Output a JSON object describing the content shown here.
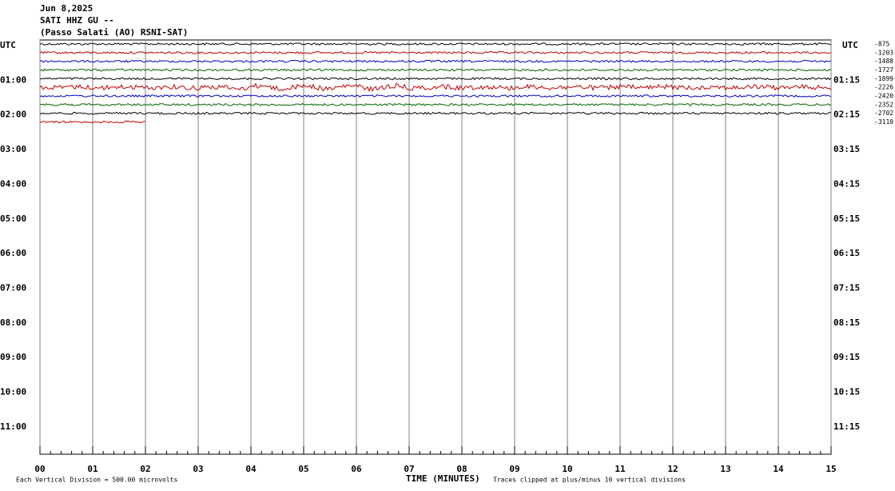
{
  "chart_data": {
    "type": "helicorder",
    "title": "Jun 8,2025",
    "subtitle": "SATI HHZ GU --",
    "station": "(Passo Salati (AO) RSNI-SAT)",
    "left_axis_title": "UTC",
    "right_axis_title": "UTC",
    "left_labels": [
      "01:00",
      "02:00",
      "03:00",
      "04:00",
      "05:00",
      "06:00",
      "07:00",
      "08:00",
      "09:00",
      "10:00",
      "11:00"
    ],
    "right_labels": [
      "01:15",
      "02:15",
      "03:15",
      "04:15",
      "05:15",
      "06:15",
      "07:15",
      "08:15",
      "09:15",
      "10:15",
      "11:15"
    ],
    "trace_offsets": [
      -875,
      -1203,
      -1488,
      -1727,
      -1899,
      -2226,
      -2420,
      -2352,
      -2702,
      -3110
    ],
    "trace_colors": [
      "#000000",
      "#c00000",
      "#0000c8",
      "#006400"
    ],
    "xlabel": "TIME (MINUTES)",
    "xlim": [
      0,
      15
    ],
    "xticks": [
      {
        "value": 0,
        "label": "00"
      },
      {
        "value": 1,
        "label": "01"
      },
      {
        "value": 2,
        "label": "02"
      },
      {
        "value": 3,
        "label": "03"
      },
      {
        "value": 4,
        "label": "04"
      },
      {
        "value": 5,
        "label": "05"
      },
      {
        "value": 6,
        "label": "06"
      },
      {
        "value": 7,
        "label": "07"
      },
      {
        "value": 8,
        "label": "08"
      },
      {
        "value": 9,
        "label": "09"
      },
      {
        "value": 10,
        "label": "10"
      },
      {
        "value": 11,
        "label": "11"
      },
      {
        "value": 12,
        "label": "12"
      },
      {
        "value": 13,
        "label": "13"
      },
      {
        "value": 14,
        "label": "14"
      },
      {
        "value": 15,
        "label": "15"
      }
    ],
    "last_trace_end": 2,
    "scale_note": "Each Vertical Division =  500.00 microvolts",
    "clip_note": "Traces clipped at plus/minus 10 vertical divisions"
  }
}
